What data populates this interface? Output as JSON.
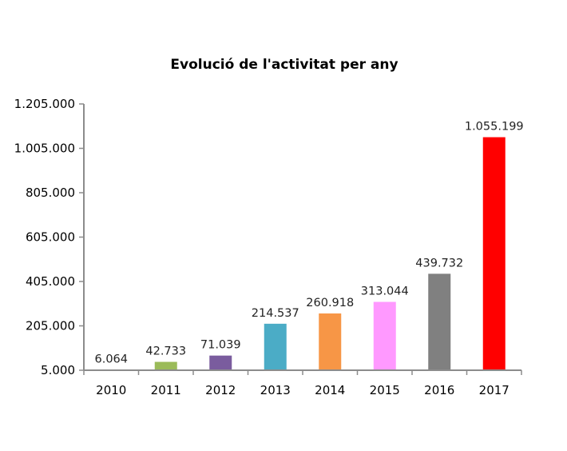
{
  "chart_data": {
    "type": "bar",
    "title": "Evolució de l'activitat per any",
    "xlabel": "",
    "ylabel": "",
    "categories": [
      "2010",
      "2011",
      "2012",
      "2013",
      "2014",
      "2015",
      "2016",
      "2017"
    ],
    "values": [
      6064,
      42733,
      71039,
      214537,
      260918,
      313044,
      439732,
      1055199
    ],
    "data_labels": [
      "6.064",
      "42.733",
      "71.039",
      "214.537",
      "260.918",
      "313.044",
      "439.732",
      "1.055.199"
    ],
    "colors": [
      "#4f81bd",
      "#9bbb59",
      "#7a5c9e",
      "#4bacc6",
      "#f79646",
      "#ff99ff",
      "#808080",
      "#ff0000"
    ],
    "ylim": [
      5000,
      1205000
    ],
    "yticks": [
      5000,
      205000,
      405000,
      605000,
      805000,
      1005000,
      1205000
    ],
    "ytick_labels": [
      "5.000",
      "205.000",
      "405.000",
      "605.000",
      "805.000",
      "1.005.000",
      "1.205.000"
    ],
    "grid": false,
    "legend": "none"
  }
}
